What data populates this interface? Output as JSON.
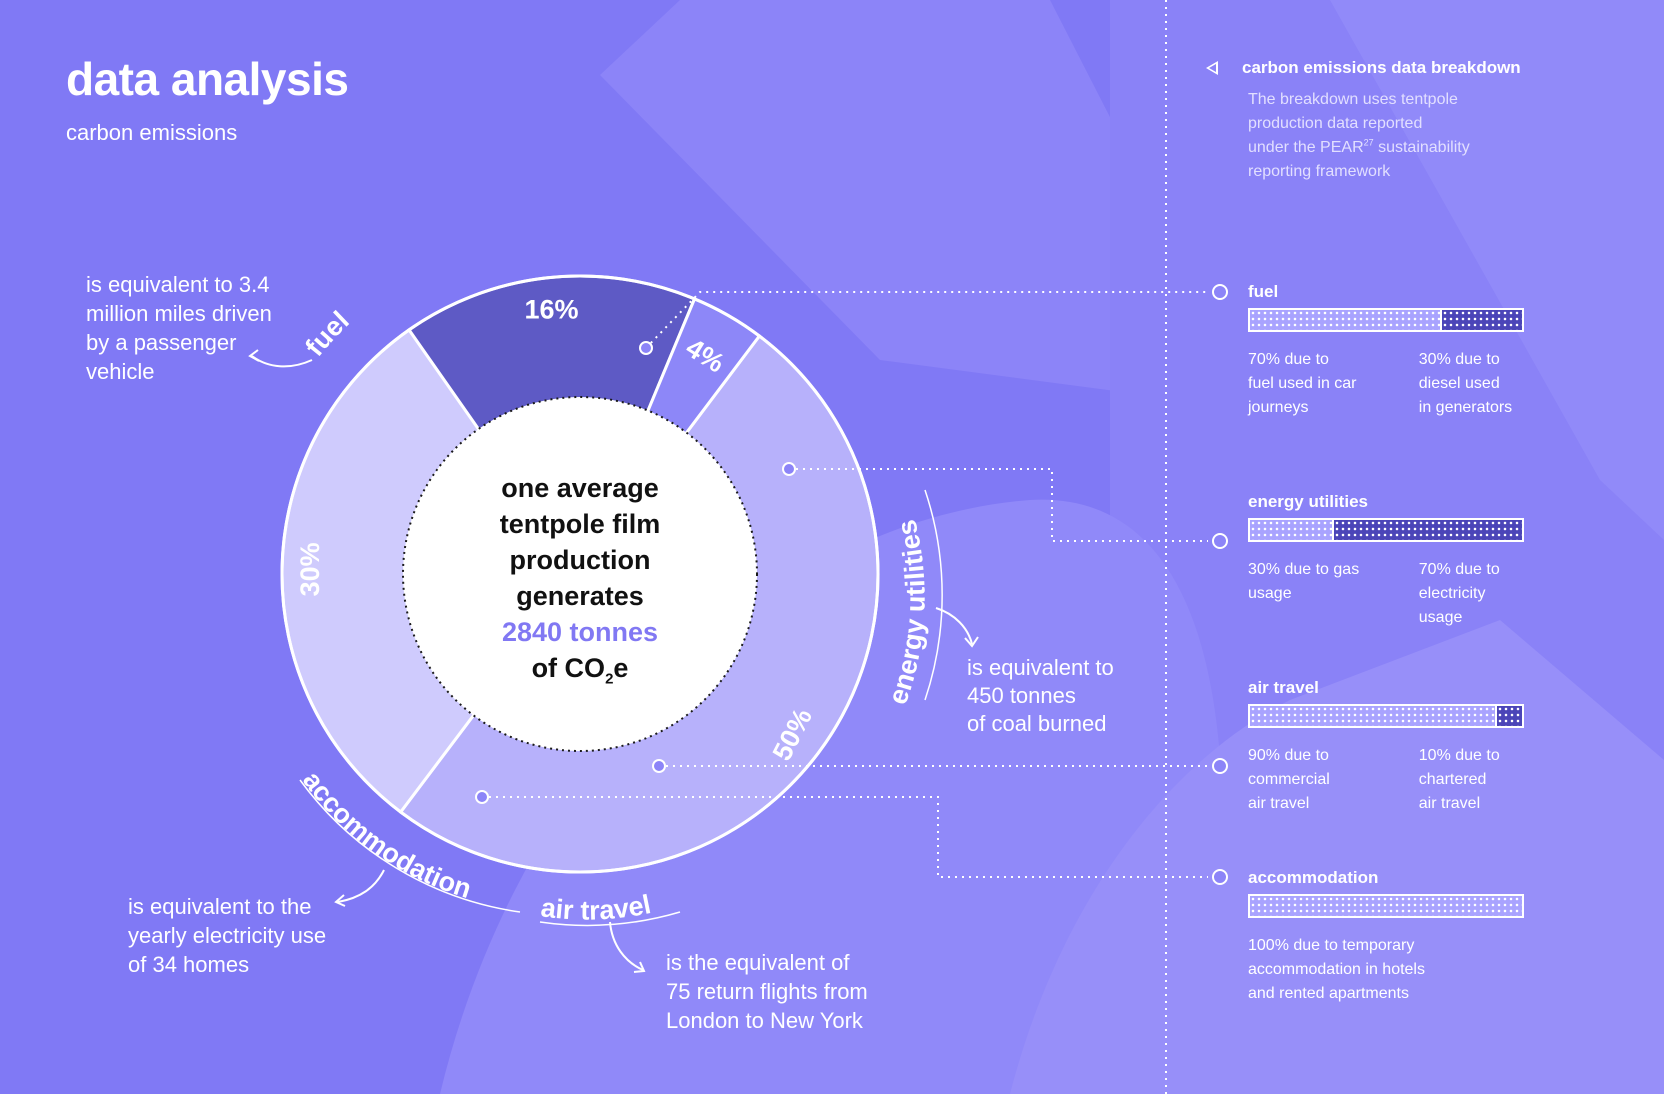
{
  "header": {
    "title": "data analysis",
    "subtitle": "carbon emissions"
  },
  "chart_data": {
    "type": "pie",
    "categories": [
      "fuel",
      "energy utilities",
      "air travel",
      "accommodation"
    ],
    "values": [
      50,
      30,
      16,
      4
    ],
    "labels": [
      "50%",
      "30%",
      "16%",
      "4%"
    ],
    "colors": [
      "#b7b1fb",
      "#cfcbfd",
      "#5e5ac5",
      "#8d87f8"
    ]
  },
  "center": {
    "line1": "one average",
    "line2": "tentpole film",
    "line3": "production",
    "line4": "generates",
    "highlight": "2840 tonnes",
    "line6_prefix": "of CO",
    "line6_sub": "2",
    "line6_suffix": "e"
  },
  "equivalents": {
    "fuel": [
      "is equivalent to 3.4",
      "million miles driven",
      "by a passenger",
      "vehicle"
    ],
    "energy": [
      "is equivalent to",
      "450 tonnes",
      "of coal burned"
    ],
    "air": [
      "is the equivalent of",
      "75 return flights from",
      "London to New York"
    ],
    "accommodation": [
      "is equivalent to the",
      "yearly electricity use",
      "of 34 homes"
    ]
  },
  "panel": {
    "title": "carbon emissions data breakdown",
    "desc_1": "The breakdown uses tentpole",
    "desc_2": "production data reported",
    "desc_3_prefix": "under the PEAR",
    "desc_3_sup": "27",
    "desc_3_suffix": " sustainability",
    "desc_4": "reporting framework"
  },
  "breakdown": [
    {
      "title": "fuel",
      "split": [
        70,
        30
      ],
      "left": [
        "70% due to",
        "fuel used in car",
        "journeys"
      ],
      "right": [
        "30% due to",
        "diesel used",
        "in generators"
      ]
    },
    {
      "title": "energy utilities",
      "split": [
        30,
        70
      ],
      "left": [
        "30% due to gas",
        "usage"
      ],
      "right": [
        "70% due to",
        "electricity",
        "usage"
      ]
    },
    {
      "title": "air travel",
      "split": [
        90,
        10
      ],
      "left": [
        "90% due to",
        "commercial",
        "air travel"
      ],
      "right": [
        "10% due to",
        "chartered",
        "air travel"
      ]
    },
    {
      "title": "accommodation",
      "split": [
        100
      ],
      "full": [
        "100% due to temporary",
        "accommodation in hotels",
        "and rented apartments"
      ]
    }
  ]
}
